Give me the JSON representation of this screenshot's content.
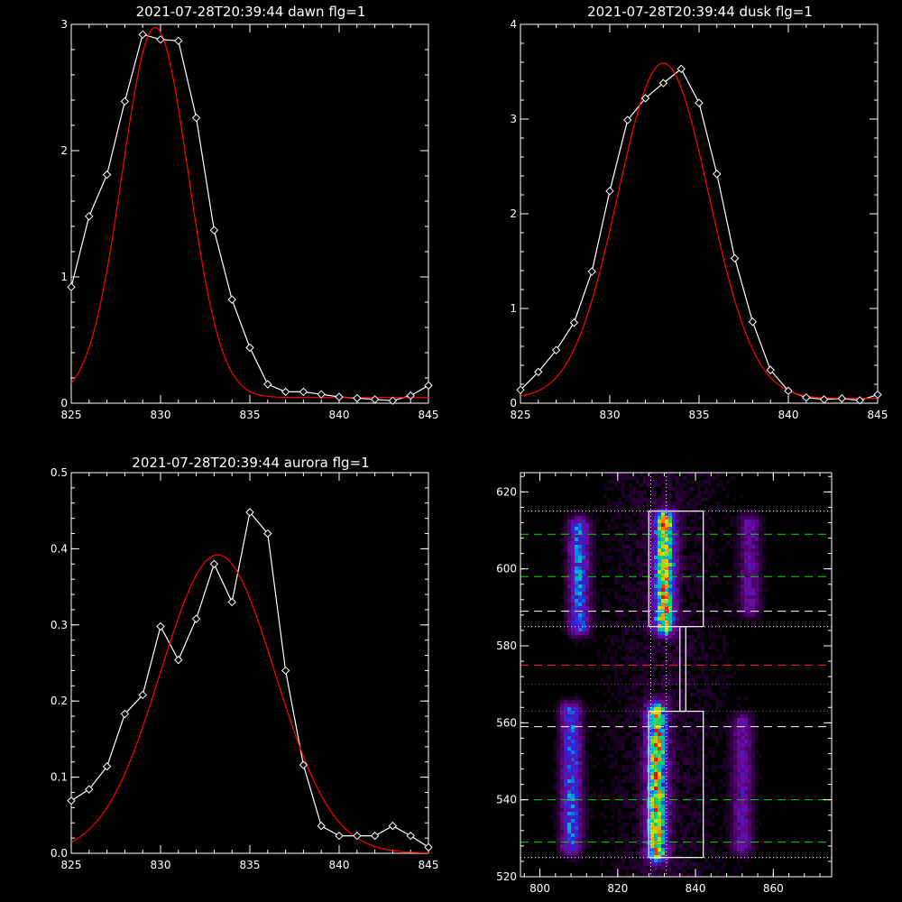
{
  "chart_data": [
    {
      "type": "line",
      "title": "2021-07-28T20:39:44 dawn flg=1",
      "xlim": [
        825,
        845
      ],
      "ylim": [
        0,
        3
      ],
      "xticks": [
        "825",
        "830",
        "835",
        "840",
        "845"
      ],
      "yticks": [
        "0",
        "1",
        "2",
        "3"
      ],
      "series": [
        {
          "style": "white-diamonds",
          "color": "#ffffff",
          "x": [
            825,
            826,
            827,
            828,
            829,
            830,
            831,
            832,
            833,
            834,
            835,
            836,
            837,
            838,
            839,
            840,
            841,
            842,
            843,
            844,
            845
          ],
          "y": [
            0.92,
            1.48,
            1.81,
            2.39,
            2.92,
            2.88,
            2.87,
            2.26,
            1.37,
            0.82,
            0.44,
            0.15,
            0.09,
            0.09,
            0.07,
            0.05,
            0.04,
            0.03,
            0.02,
            0.06,
            0.14
          ]
        },
        {
          "style": "red-fit",
          "color": "#ff0000",
          "fit": {
            "peak": 2.93,
            "center": 829.7,
            "sigma": 1.85,
            "base": 0.045
          }
        }
      ]
    },
    {
      "type": "line",
      "title": "2021-07-28T20:39:44 dusk flg=1",
      "xlim": [
        825,
        845
      ],
      "ylim": [
        0,
        4
      ],
      "xticks": [
        "825",
        "830",
        "835",
        "840",
        "845"
      ],
      "yticks": [
        "0",
        "1",
        "2",
        "3",
        "4"
      ],
      "series": [
        {
          "style": "white-diamonds",
          "color": "#ffffff",
          "x": [
            825,
            826,
            827,
            828,
            829,
            830,
            831,
            832,
            833,
            834,
            835,
            836,
            837,
            838,
            839,
            840,
            841,
            842,
            843,
            844,
            845
          ],
          "y": [
            0.14,
            0.33,
            0.56,
            0.85,
            1.39,
            2.24,
            2.99,
            3.22,
            3.38,
            3.53,
            3.17,
            2.42,
            1.53,
            0.86,
            0.35,
            0.13,
            0.06,
            0.04,
            0.05,
            0.03,
            0.09
          ]
        },
        {
          "style": "red-fit",
          "color": "#ff0000",
          "fit": {
            "peak": 3.54,
            "center": 833.0,
            "sigma": 2.55,
            "base": 0.05
          }
        }
      ]
    },
    {
      "type": "line",
      "title": "2021-07-28T20:39:44 aurora flg=1",
      "xlim": [
        825,
        845
      ],
      "ylim": [
        0,
        0.5
      ],
      "xticks": [
        "825",
        "830",
        "835",
        "840",
        "845"
      ],
      "yticks": [
        "0.0",
        "0.1",
        "0.2",
        "0.3",
        "0.4",
        "0.5"
      ],
      "series": [
        {
          "style": "white-diamonds",
          "color": "#ffffff",
          "x": [
            825,
            826,
            827,
            828,
            829,
            830,
            831,
            832,
            833,
            834,
            835,
            836,
            837,
            838,
            839,
            840,
            841,
            842,
            843,
            844,
            845
          ],
          "y": [
            0.069,
            0.084,
            0.114,
            0.183,
            0.208,
            0.298,
            0.254,
            0.308,
            0.38,
            0.33,
            0.448,
            0.42,
            0.24,
            0.116,
            0.036,
            0.023,
            0.023,
            0.023,
            0.036,
            0.023,
            0.008
          ]
        },
        {
          "style": "red-fit",
          "color": "#ff0000",
          "fit": {
            "peak": 0.392,
            "center": 833.2,
            "sigma": 3.2,
            "base": 0
          }
        }
      ]
    },
    {
      "type": "heatmap",
      "title": "",
      "xlim": [
        795,
        875
      ],
      "ylim": [
        520,
        625
      ],
      "xticks": [
        "800",
        "820",
        "840",
        "860"
      ],
      "yticks": [
        "520",
        "540",
        "560",
        "580",
        "600",
        "620"
      ],
      "blobs": [
        {
          "x": 810,
          "y0": 585,
          "y1": 611,
          "peak": 0.62
        },
        {
          "x": 832,
          "y0": 585,
          "y1": 613,
          "peak": 1.0
        },
        {
          "x": 854,
          "y0": 590,
          "y1": 612,
          "peak": 0.35
        },
        {
          "x": 808,
          "y0": 528,
          "y1": 563,
          "peak": 0.6
        },
        {
          "x": 830,
          "y0": 526,
          "y1": 563,
          "peak": 0.98
        },
        {
          "x": 852,
          "y0": 528,
          "y1": 560,
          "peak": 0.38
        }
      ],
      "boxes": [
        {
          "x0": 828,
          "x1": 842,
          "y0": 585,
          "y1": 615,
          "color": "#ffffff"
        },
        {
          "x0": 828,
          "x1": 842,
          "y0": 525,
          "y1": 563,
          "color": "#ffffff"
        },
        {
          "x0": 836,
          "x1": 837.5,
          "y0": 563,
          "y1": 585,
          "color": "#ffffff"
        }
      ],
      "hlines": [
        {
          "y": 615,
          "color": "#ffff66",
          "style": "dotted"
        },
        {
          "y": 609,
          "color": "#00dd00",
          "style": "dashed"
        },
        {
          "y": 598,
          "color": "#00dd00",
          "style": "dashed"
        },
        {
          "y": 589,
          "color": "#ffffff",
          "style": "dashed"
        },
        {
          "y": 585,
          "color": "#ffff66",
          "style": "dotted"
        },
        {
          "y": 575,
          "color": "#ff2222",
          "style": "dashed"
        },
        {
          "y": 570,
          "color": "#ff2222",
          "style": "dotted"
        },
        {
          "y": 563,
          "color": "#ff2222",
          "style": "dotted"
        },
        {
          "y": 559,
          "color": "#ffffff",
          "style": "dashed"
        },
        {
          "y": 540,
          "color": "#00dd00",
          "style": "dashed"
        },
        {
          "y": 529,
          "color": "#00dd00",
          "style": "dashed"
        },
        {
          "y": 525,
          "color": "#ffff66",
          "style": "dotted"
        }
      ],
      "vlines": [
        {
          "x": 828.5,
          "color": "#ffffff",
          "style": "dotted"
        },
        {
          "x": 832.5,
          "color": "#ffffff",
          "style": "dotted"
        }
      ]
    }
  ]
}
